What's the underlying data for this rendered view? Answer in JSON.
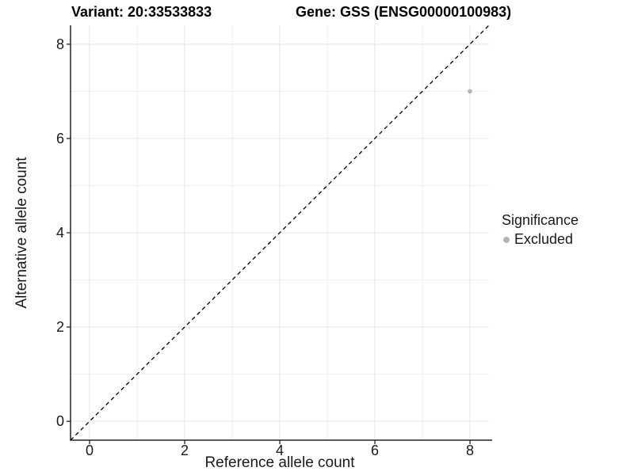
{
  "chart_data": {
    "type": "scatter",
    "titles": {
      "variant": "Variant: 20:33533833",
      "gene": "Gene: GSS (ENSG00000100983)"
    },
    "xlabel": "Reference allele count",
    "ylabel": "Alternative allele count",
    "xlim": [
      -0.4,
      8.4
    ],
    "ylim": [
      -0.4,
      8.4
    ],
    "x_ticks": [
      0,
      2,
      4,
      6,
      8
    ],
    "y_ticks": [
      0,
      2,
      4,
      6,
      8
    ],
    "grid": {
      "major": [
        0,
        2,
        4,
        6,
        8
      ],
      "minor": [
        1,
        3,
        5,
        7
      ],
      "major_color": "#e4e4e4",
      "minor_color": "#efefef"
    },
    "identity_line": {
      "style": "dashed",
      "from": [
        -0.4,
        -0.4
      ],
      "to": [
        8.4,
        8.4
      ],
      "color": "#000000"
    },
    "points": [
      {
        "x": 8,
        "y": 7,
        "significance": "Excluded",
        "color": "#b4b4b4",
        "radius": 2.8
      }
    ],
    "legend": {
      "title": "Significance",
      "position": "right",
      "entries": [
        {
          "label": "Excluded",
          "color": "#b4b4b4"
        }
      ]
    },
    "colors": {
      "background": "#ffffff",
      "axis": "#222222",
      "tick_text": "#1a1a1a",
      "title_text": "#000000"
    }
  }
}
